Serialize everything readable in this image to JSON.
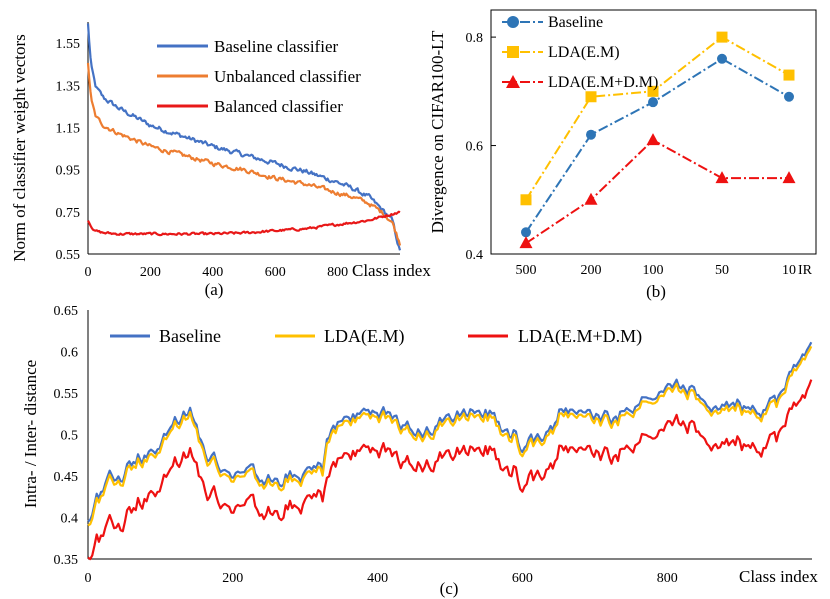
{
  "chart_data": [
    {
      "id": "a",
      "type": "line",
      "caption": "(a)",
      "ylabel": "Norm of classifier weight vectors",
      "xlabel": "Class index",
      "xlim": [
        0,
        1000
      ],
      "ylim": [
        0.55,
        1.65
      ],
      "xticks": [
        "0",
        "200",
        "400",
        "600",
        "800"
      ],
      "xtick_values": [
        0,
        200,
        400,
        600,
        800
      ],
      "yticks": [
        "0.55",
        "0.75",
        "0.95",
        "1.15",
        "1.35",
        "1.55"
      ],
      "ytick_values": [
        0.55,
        0.75,
        0.95,
        1.15,
        1.35,
        1.55
      ],
      "legend_position": "top-right",
      "series": [
        {
          "name": "Baseline classifier",
          "color": "#4472C4",
          "x": [
            0,
            10,
            25,
            50,
            100,
            200,
            300,
            400,
            500,
            600,
            700,
            800,
            850,
            900,
            950,
            975,
            1000
          ],
          "y": [
            1.64,
            1.44,
            1.34,
            1.29,
            1.24,
            1.16,
            1.11,
            1.06,
            1.02,
            0.98,
            0.94,
            0.89,
            0.86,
            0.82,
            0.75,
            0.71,
            0.56
          ]
        },
        {
          "name": "Unbalanced classifier",
          "color": "#ED7D31",
          "x": [
            0,
            10,
            25,
            50,
            100,
            200,
            300,
            400,
            500,
            600,
            700,
            800,
            850,
            900,
            950,
            975,
            1000
          ],
          "y": [
            1.46,
            1.28,
            1.2,
            1.16,
            1.12,
            1.06,
            1.02,
            0.98,
            0.95,
            0.91,
            0.88,
            0.84,
            0.82,
            0.79,
            0.74,
            0.7,
            0.6
          ]
        },
        {
          "name": "Balanced classifier",
          "color": "#E81818",
          "x": [
            0,
            20,
            50,
            100,
            200,
            300,
            400,
            500,
            600,
            700,
            800,
            850,
            900,
            950,
            1000
          ],
          "y": [
            0.71,
            0.66,
            0.65,
            0.645,
            0.645,
            0.645,
            0.645,
            0.65,
            0.66,
            0.67,
            0.69,
            0.7,
            0.71,
            0.73,
            0.75
          ]
        }
      ]
    },
    {
      "id": "b",
      "type": "line",
      "caption": "(b)",
      "ylabel": "Divergence on CIFAR100-LT",
      "xlabel": "IR",
      "categories": [
        "500",
        "200",
        "100",
        "50",
        "10"
      ],
      "ylim": [
        0.4,
        0.85
      ],
      "yticks": [
        "0.4",
        "0.6",
        "0.8"
      ],
      "ytick_values": [
        0.4,
        0.6,
        0.8
      ],
      "legend_position": "top-left",
      "series": [
        {
          "name": "Baseline",
          "color": "#2E75B6",
          "marker": "circle",
          "values": [
            0.44,
            0.62,
            0.68,
            0.76,
            0.69
          ]
        },
        {
          "name": "LDA(E.M)",
          "color": "#FFC000",
          "marker": "square",
          "values": [
            0.5,
            0.69,
            0.7,
            0.8,
            0.73
          ]
        },
        {
          "name": "LDA(E.M+D.M)",
          "color": "#EE1111",
          "marker": "triangle",
          "values": [
            0.42,
            0.5,
            0.61,
            0.54,
            0.54
          ]
        }
      ]
    },
    {
      "id": "c",
      "type": "line",
      "caption": "(c)",
      "ylabel": "Intra- / Inter- distance",
      "xlabel": "Class index",
      "xlim": [
        0,
        1000
      ],
      "ylim": [
        0.35,
        0.65
      ],
      "xticks": [
        "0",
        "200",
        "400",
        "600",
        "800"
      ],
      "xtick_values": [
        0,
        200,
        400,
        600,
        800
      ],
      "yticks": [
        "0.35",
        "0.4",
        "0.45",
        "0.5",
        "0.55",
        "0.6",
        "0.65"
      ],
      "ytick_values": [
        0.35,
        0.4,
        0.45,
        0.5,
        0.55,
        0.6,
        0.65
      ],
      "legend_position": "top",
      "series": [
        {
          "name": "Baseline",
          "color": "#4472C4",
          "x": [
            0,
            10,
            30,
            60,
            90,
            120,
            140,
            160,
            190,
            230,
            270,
            300,
            325,
            330,
            360,
            400,
            430,
            460,
            500,
            530,
            560,
            600,
            630,
            660,
            700,
            740,
            780,
            800,
            830,
            860,
            900,
            930,
            960,
            990,
            1000
          ],
          "y": [
            0.39,
            0.42,
            0.45,
            0.47,
            0.48,
            0.515,
            0.53,
            0.48,
            0.46,
            0.45,
            0.44,
            0.455,
            0.46,
            0.5,
            0.52,
            0.53,
            0.515,
            0.5,
            0.52,
            0.53,
            0.52,
            0.49,
            0.5,
            0.535,
            0.52,
            0.53,
            0.55,
            0.56,
            0.55,
            0.535,
            0.54,
            0.53,
            0.55,
            0.6,
            0.61
          ]
        },
        {
          "name": "LDA(E.M)",
          "color": "#FFC000",
          "x": [
            0,
            10,
            30,
            60,
            90,
            120,
            140,
            160,
            190,
            230,
            270,
            300,
            325,
            330,
            360,
            400,
            430,
            460,
            500,
            530,
            560,
            600,
            630,
            660,
            700,
            740,
            780,
            800,
            830,
            860,
            900,
            930,
            960,
            990,
            1000
          ],
          "y": [
            0.385,
            0.415,
            0.445,
            0.465,
            0.475,
            0.51,
            0.525,
            0.475,
            0.455,
            0.445,
            0.435,
            0.45,
            0.455,
            0.495,
            0.515,
            0.525,
            0.51,
            0.495,
            0.515,
            0.525,
            0.515,
            0.485,
            0.495,
            0.53,
            0.515,
            0.525,
            0.545,
            0.555,
            0.545,
            0.53,
            0.535,
            0.525,
            0.545,
            0.595,
            0.605
          ]
        },
        {
          "name": "LDA(E.M+D.M)",
          "color": "#EE1111",
          "x": [
            0,
            10,
            30,
            60,
            90,
            120,
            140,
            160,
            190,
            230,
            270,
            300,
            325,
            330,
            360,
            400,
            430,
            460,
            500,
            530,
            560,
            600,
            630,
            660,
            700,
            740,
            780,
            800,
            830,
            860,
            900,
            930,
            960,
            990,
            1000
          ],
          "y": [
            0.345,
            0.37,
            0.395,
            0.415,
            0.43,
            0.465,
            0.48,
            0.435,
            0.42,
            0.41,
            0.4,
            0.42,
            0.425,
            0.455,
            0.475,
            0.485,
            0.47,
            0.46,
            0.475,
            0.485,
            0.475,
            0.445,
            0.455,
            0.49,
            0.475,
            0.485,
            0.505,
            0.515,
            0.505,
            0.49,
            0.495,
            0.485,
            0.505,
            0.55,
            0.565
          ]
        }
      ]
    }
  ]
}
